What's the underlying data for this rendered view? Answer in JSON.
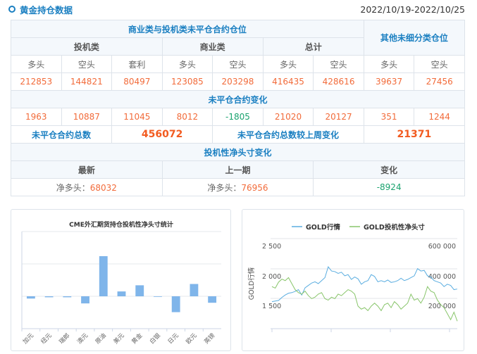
{
  "header": {
    "title": "黄金持仓数据",
    "date_range": "2022/10/19-2022/10/25"
  },
  "table": {
    "title_main": "商业类与投机类未平仓合约仓位",
    "title_other": "其他未细分类仓位",
    "groups": [
      "投机类",
      "商业类",
      "总计"
    ],
    "cols": [
      "多头",
      "空头",
      "套利",
      "多头",
      "空头",
      "多头",
      "空头",
      "多头",
      "空头"
    ],
    "positions": [
      "212853",
      "144821",
      "80497",
      "123085",
      "203298",
      "416435",
      "428616",
      "39637",
      "27456"
    ],
    "change_title": "未平仓合约变化",
    "changes": [
      "1963",
      "10887",
      "11045",
      "8012",
      "-1805",
      "21020",
      "20127",
      "351",
      "1244"
    ],
    "total_label": "未平仓合约总数",
    "total_value": "456072",
    "total_change_label": "未平仓合约总数较上周变化",
    "total_change_value": "21371",
    "net_title": "投机性净头寸变化",
    "net_headers": [
      "最新",
      "上一期",
      "变化"
    ],
    "net_prefix": "净多头：",
    "net_latest": "68032",
    "net_previous": "76956",
    "net_change": "-8924"
  },
  "colors": {
    "accent": "#1a7fc1",
    "positive": "#f26b3a",
    "negative": "#1aa36f",
    "bar": "#7fb5ea",
    "gold_line": "#5aade0",
    "net_line": "#88c56a"
  },
  "chart_data": [
    {
      "type": "bar",
      "title": "CME外汇期货持仓投机性净头寸统计",
      "categories": [
        "加元",
        "纽元",
        "瑞郎",
        "澳元",
        "原油",
        "美元",
        "黄金",
        "白银",
        "日元",
        "欧元",
        "英镑"
      ],
      "values": [
        -0.07,
        -0.03,
        -0.03,
        -0.22,
        1.24,
        0.15,
        0.34,
        0,
        -0.49,
        0.38,
        -0.2
      ],
      "ylim": [
        -1,
        2
      ],
      "grid": true
    },
    {
      "type": "line",
      "legend_position": "top",
      "ylabel": "GOLD行情",
      "left_ticks": [
        "1 500",
        "2 000",
        "2 500"
      ],
      "left_ylim": [
        1000,
        2500
      ],
      "right_ticks": [
        "200 000",
        "400 000",
        "600 000"
      ],
      "right_ylim": [
        0,
        600000
      ],
      "series": [
        {
          "name": "GOLD行情",
          "axis": "left",
          "values": [
            1450,
            1460,
            1470,
            1520,
            1560,
            1590,
            1600,
            1620,
            1650,
            1560,
            1680,
            1720,
            1760,
            1780,
            1750,
            1800,
            1850,
            2030,
            1960,
            1950,
            1920,
            1940,
            1880,
            1900,
            1820,
            1860,
            1830,
            1740,
            1780,
            1800,
            1900,
            1870,
            1780,
            1800,
            1780,
            1810,
            1770,
            1780,
            1800,
            1840,
            1800,
            1820,
            1850,
            1880,
            2000,
            1960,
            1970,
            1880,
            1860,
            1800,
            1780,
            1760,
            1700,
            1740,
            1720,
            1650,
            1660
          ]
        },
        {
          "name": "GOLD投机性净头寸",
          "axis": "right",
          "values": [
            280000,
            270000,
            310000,
            330000,
            320000,
            340000,
            300000,
            260000,
            240000,
            230000,
            250000,
            220000,
            200000,
            210000,
            230000,
            240000,
            200000,
            190000,
            210000,
            200000,
            230000,
            220000,
            240000,
            260000,
            250000,
            230000,
            150000,
            130000,
            140000,
            120000,
            150000,
            170000,
            150000,
            120000,
            160000,
            170000,
            140000,
            180000,
            160000,
            130000,
            150000,
            170000,
            230000,
            190000,
            200000,
            170000,
            210000,
            280000,
            250000,
            240000,
            190000,
            160000,
            140000,
            100000,
            60000,
            110000,
            50000
          ]
        }
      ]
    }
  ]
}
